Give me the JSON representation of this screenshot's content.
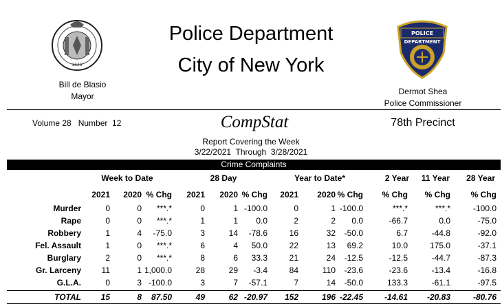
{
  "header": {
    "title_line1": "Police Department",
    "title_line2": "City of New York",
    "mayor_name": "Bill de Blasio",
    "mayor_title": "Mayor",
    "commissioner_name": "Dermot Shea",
    "commissioner_title": "Police Commissioner",
    "volume": "Volume 28   Number  12",
    "report_name": "CompStat",
    "precinct": "78th Precinct",
    "report_covering": "Report Covering the Week",
    "date_range": "3/22/2021  Through  3/28/2021",
    "seal_text": "1625",
    "badge_text": "POLICE DEPARTMENT CITY OF NEW YORK"
  },
  "section_title": "Crime Complaints",
  "group_headers": {
    "week": "Week to Date",
    "day28": "28 Day",
    "ytd": "Year to Date*",
    "two_year": "2 Year",
    "eleven_year": "11 Year",
    "twentyeight_year": "28 Year"
  },
  "column_headers": [
    "2021",
    "2020",
    "% Chg",
    "2021",
    "2020",
    "% Chg",
    "2021",
    "2020",
    "% Chg",
    "% Chg",
    "% Chg",
    "% Chg"
  ],
  "rows": [
    {
      "label": "Murder",
      "values": [
        "0",
        "0",
        "***.*",
        "0",
        "1",
        "-100.0",
        "0",
        "1",
        "-100.0",
        "***.*",
        "***.*",
        "-100.0"
      ]
    },
    {
      "label": "Rape",
      "values": [
        "0",
        "0",
        "***.*",
        "1",
        "1",
        "0.0",
        "2",
        "2",
        "0.0",
        "-66.7",
        "0.0",
        "-75.0"
      ]
    },
    {
      "label": "Robbery",
      "values": [
        "1",
        "4",
        "-75.0",
        "3",
        "14",
        "-78.6",
        "16",
        "32",
        "-50.0",
        "6.7",
        "-44.8",
        "-92.0"
      ]
    },
    {
      "label": "Fel. Assault",
      "values": [
        "1",
        "0",
        "***.*",
        "6",
        "4",
        "50.0",
        "22",
        "13",
        "69.2",
        "10.0",
        "175.0",
        "-37.1"
      ]
    },
    {
      "label": "Burglary",
      "values": [
        "2",
        "0",
        "***.*",
        "8",
        "6",
        "33.3",
        "21",
        "24",
        "-12.5",
        "-12.5",
        "-44.7",
        "-87.3"
      ]
    },
    {
      "label": "Gr. Larceny",
      "values": [
        "11",
        "1",
        "1,000.0",
        "28",
        "29",
        "-3.4",
        "84",
        "110",
        "-23.6",
        "-23.6",
        "-13.4",
        "-16.8"
      ]
    },
    {
      "label": "G.L.A.",
      "values": [
        "0",
        "3",
        "-100.0",
        "3",
        "7",
        "-57.1",
        "7",
        "14",
        "-50.0",
        "133.3",
        "-61.1",
        "-97.5"
      ]
    }
  ],
  "total": {
    "label": "TOTAL",
    "values": [
      "15",
      "8",
      "87.50",
      "49",
      "62",
      "-20.97",
      "152",
      "196",
      "-22.45",
      "-14.61",
      "-20.83",
      "-80.76"
    ]
  }
}
